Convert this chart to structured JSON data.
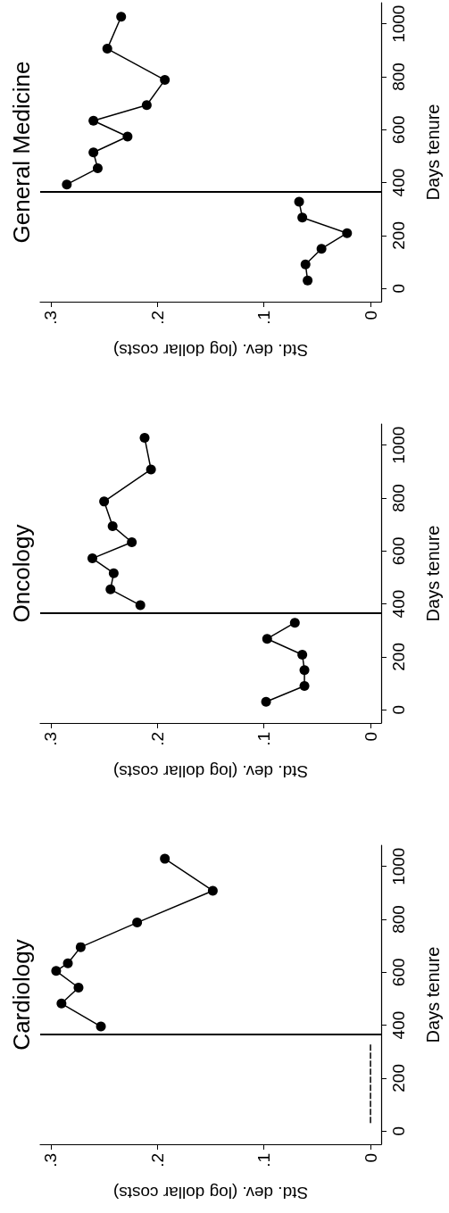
{
  "chart_data": [
    {
      "type": "line",
      "title": "General Medicine",
      "xlabel": "Std. dev. (log dollar costs)",
      "ylabel": "Days tenure",
      "marker": "circle",
      "line_style": "solid",
      "xlim": [
        0.31,
        -0.01
      ],
      "ylim": [
        -50,
        1080
      ],
      "xticks": [
        {
          "value": 0.3,
          "label": ".3"
        },
        {
          "value": 0.2,
          "label": ".2"
        },
        {
          "value": 0.1,
          "label": ".1"
        },
        {
          "value": 0,
          "label": "0"
        }
      ],
      "yticks": [
        0,
        200,
        400,
        600,
        800,
        1000
      ],
      "ref_lines": [
        {
          "axis": "y",
          "value": 365,
          "color": "#000000"
        }
      ],
      "series": [
        {
          "color": "#000000",
          "x": [
            0.059,
            0.061,
            0.046,
            0.022,
            0.064,
            0.067
          ],
          "values": [
            30,
            91,
            150,
            209,
            268,
            328
          ]
        },
        {
          "color": "#000000",
          "x": [
            0.285,
            0.256,
            0.26,
            0.228,
            0.26,
            0.21,
            0.193,
            0.247,
            0.234
          ],
          "values": [
            393,
            454,
            514,
            574,
            634,
            693,
            788,
            906,
            1027
          ]
        }
      ]
    },
    {
      "type": "line",
      "title": "Oncology",
      "xlabel": "Std. dev. (log dollar costs)",
      "ylabel": "Days tenure",
      "marker": "circle",
      "line_style": "solid",
      "xlim": [
        0.31,
        -0.01
      ],
      "ylim": [
        -50,
        1080
      ],
      "xticks": [
        {
          "value": 0.3,
          "label": ".3"
        },
        {
          "value": 0.2,
          "label": ".2"
        },
        {
          "value": 0.1,
          "label": ".1"
        },
        {
          "value": 0,
          "label": "0"
        }
      ],
      "yticks": [
        0,
        200,
        400,
        600,
        800,
        1000
      ],
      "ref_lines": [
        {
          "axis": "y",
          "value": 365,
          "color": "#000000"
        }
      ],
      "series": [
        {
          "color": "#000000",
          "x": [
            0.098,
            0.062,
            0.062,
            0.064,
            0.097,
            0.071
          ],
          "values": [
            30,
            90,
            150,
            208,
            268,
            329
          ]
        },
        {
          "color": "#000000",
          "x": [
            0.216,
            0.244,
            0.241,
            0.261,
            0.224,
            0.242,
            0.25,
            0.206,
            0.212
          ],
          "values": [
            395,
            455,
            516,
            572,
            633,
            694,
            787,
            908,
            1028
          ]
        }
      ]
    },
    {
      "type": "line",
      "title": "Cardiology",
      "xlabel": "Std. dev. (log dollar costs)",
      "ylabel": "Days tenure",
      "marker": "circle",
      "line_style": "solid",
      "xlim": [
        0.31,
        -0.01
      ],
      "ylim": [
        -50,
        1080
      ],
      "xticks": [
        {
          "value": 0.3,
          "label": ".3"
        },
        {
          "value": 0.2,
          "label": ".2"
        },
        {
          "value": 0.1,
          "label": ".1"
        },
        {
          "value": 0,
          "label": "0"
        }
      ],
      "yticks": [
        0,
        200,
        400,
        600,
        800,
        1000
      ],
      "ref_lines": [
        {
          "axis": "y",
          "value": 365,
          "color": "#000000"
        }
      ],
      "series": [
        {
          "color": "#000000",
          "marker": "none",
          "line_style": "dashed",
          "x": [
            0,
            0
          ],
          "values": [
            32,
            327
          ]
        },
        {
          "color": "#000000",
          "x": [
            0.253,
            0.29,
            0.274,
            0.295,
            0.284,
            0.272,
            0.219,
            0.148,
            0.193
          ],
          "values": [
            395,
            482,
            542,
            605,
            634,
            695,
            788,
            908,
            1029
          ]
        }
      ]
    }
  ]
}
